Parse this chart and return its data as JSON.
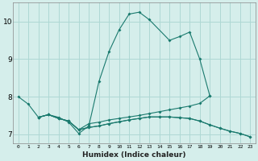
{
  "title": "",
  "xlabel": "Humidex (Indice chaleur)",
  "ylabel": "",
  "background_color": "#d5eeeb",
  "grid_color": "#aed8d4",
  "line_color": "#1a7a6e",
  "xlim": [
    -0.5,
    23.5
  ],
  "ylim": [
    6.75,
    10.5
  ],
  "yticks": [
    7,
    8,
    9,
    10
  ],
  "xticks": [
    0,
    1,
    2,
    3,
    4,
    5,
    6,
    7,
    8,
    9,
    10,
    11,
    12,
    13,
    14,
    15,
    16,
    17,
    18,
    19,
    20,
    21,
    22,
    23
  ],
  "series": [
    {
      "x": [
        0,
        1,
        2,
        3,
        4,
        5,
        6,
        7,
        8,
        9,
        10,
        11,
        12,
        13,
        15,
        16,
        17,
        18,
        19
      ],
      "y": [
        8.0,
        7.8,
        7.45,
        7.52,
        7.45,
        7.32,
        7.02,
        7.22,
        8.4,
        9.2,
        9.78,
        10.2,
        10.25,
        10.05,
        9.5,
        9.6,
        9.72,
        9.0,
        8.02
      ]
    },
    {
      "x": [
        2,
        3,
        4,
        5,
        6,
        7,
        8,
        9,
        10,
        11,
        12,
        13,
        14,
        15,
        16,
        17,
        18,
        19
      ],
      "y": [
        7.45,
        7.52,
        7.42,
        7.35,
        7.12,
        7.28,
        7.32,
        7.38,
        7.42,
        7.46,
        7.5,
        7.55,
        7.6,
        7.65,
        7.7,
        7.75,
        7.82,
        8.02
      ]
    },
    {
      "x": [
        2,
        3,
        4,
        5,
        6,
        7,
        8,
        9,
        10,
        11,
        12,
        13,
        14,
        15,
        16,
        17,
        18,
        19,
        20,
        21,
        22,
        23
      ],
      "y": [
        7.45,
        7.52,
        7.42,
        7.35,
        7.12,
        7.18,
        7.22,
        7.28,
        7.33,
        7.38,
        7.42,
        7.46,
        7.46,
        7.46,
        7.44,
        7.42,
        7.35,
        7.25,
        7.16,
        7.08,
        7.02,
        6.93
      ]
    },
    {
      "x": [
        2,
        3,
        4,
        5,
        6,
        7,
        8,
        9,
        10,
        11,
        12,
        13,
        14,
        15,
        16,
        17,
        18,
        19,
        20,
        21,
        22,
        23
      ],
      "y": [
        7.45,
        7.52,
        7.42,
        7.35,
        7.12,
        7.18,
        7.22,
        7.28,
        7.33,
        7.38,
        7.42,
        7.46,
        7.46,
        7.46,
        7.44,
        7.42,
        7.35,
        7.25,
        7.16,
        7.08,
        7.02,
        6.93
      ]
    }
  ]
}
